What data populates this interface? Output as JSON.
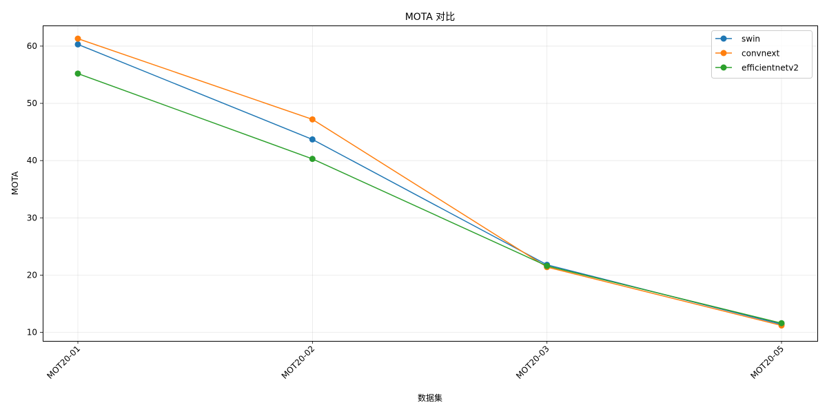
{
  "chart_data": {
    "type": "line",
    "title": "MOTA 对比",
    "xlabel": "数据集",
    "ylabel": "MOTA",
    "categories": [
      "MOT20-01",
      "MOT20-02",
      "MOT20-03",
      "MOT20-05"
    ],
    "series": [
      {
        "name": "swin",
        "color": "#1f77b4",
        "values": [
          60.3,
          43.7,
          21.8,
          11.4
        ]
      },
      {
        "name": "convnext",
        "color": "#ff7f0e",
        "values": [
          61.3,
          47.2,
          21.4,
          11.2
        ]
      },
      {
        "name": "efficientnetv2",
        "color": "#2ca02c",
        "values": [
          55.2,
          40.3,
          21.6,
          11.6
        ]
      }
    ],
    "ylim": [
      8.5,
      63.6
    ],
    "yticks": [
      10,
      20,
      30,
      40,
      50,
      60
    ],
    "grid": true,
    "legend_position": "top-right",
    "marker": "circle",
    "xtick_rotation": 45
  }
}
